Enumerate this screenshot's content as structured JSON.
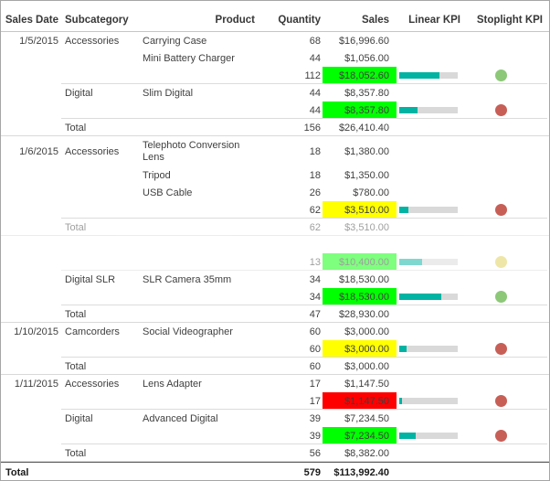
{
  "report": {
    "columns": [
      {
        "label": "Sales Date"
      },
      {
        "label": "Subcategory"
      },
      {
        "label": "Product"
      },
      {
        "label": "Quantity"
      },
      {
        "label": "Sales"
      },
      {
        "label": "Linear KPI"
      },
      {
        "label": "Stoplight KPI"
      }
    ],
    "rows": [
      {
        "type": "item",
        "date": "1/5/2015",
        "subcategory": "Accessories",
        "product": "Carrying Case",
        "quantity": "68",
        "sales": "$16,996.60"
      },
      {
        "type": "item",
        "product": "Mini Battery Charger",
        "quantity": "44",
        "sales": "$1,056.00"
      },
      {
        "type": "subtotal",
        "quantity": "112",
        "sales": "$18,052.60",
        "sales_bg": "green",
        "kpi_pct": 68,
        "dot": "green"
      },
      {
        "type": "item",
        "subcategory": "Digital",
        "product": "Slim Digital",
        "quantity": "44",
        "sales": "$8,357.80"
      },
      {
        "type": "subtotal",
        "quantity": "44",
        "sales": "$8,357.80",
        "sales_bg": "green",
        "kpi_pct": 32,
        "dot": "red"
      },
      {
        "type": "group-total",
        "label": "Total",
        "quantity": "156",
        "sales": "$26,410.40"
      },
      {
        "type": "item",
        "date": "1/6/2015",
        "subcategory": "Accessories",
        "product": "Telephoto Conversion Lens",
        "quantity": "18",
        "sales": "$1,380.00",
        "tall": true
      },
      {
        "type": "item",
        "product": "Tripod",
        "quantity": "18",
        "sales": "$1,350.00"
      },
      {
        "type": "item",
        "product": "USB Cable",
        "quantity": "26",
        "sales": "$780.00"
      },
      {
        "type": "subtotal",
        "quantity": "62",
        "sales": "$3,510.00",
        "sales_bg": "yellow",
        "kpi_pct": 16,
        "dot": "red"
      },
      {
        "type": "group-total",
        "label": "Total",
        "quantity": "62",
        "sales": "$3,510.00",
        "faded": true
      },
      {
        "type": "item",
        "blank": true,
        "faded": true
      },
      {
        "type": "subtotal",
        "quantity": "13",
        "sales": "$10,400.00",
        "sales_bg": "green",
        "kpi_pct": 39,
        "dot": "yellow",
        "faded": true
      },
      {
        "type": "item",
        "subcategory": "Digital SLR",
        "product": "SLR Camera 35mm",
        "quantity": "34",
        "sales": "$18,530.00"
      },
      {
        "type": "subtotal",
        "quantity": "34",
        "sales": "$18,530.00",
        "sales_bg": "green",
        "kpi_pct": 72,
        "dot": "green"
      },
      {
        "type": "group-total",
        "label": "Total",
        "quantity": "47",
        "sales": "$28,930.00"
      },
      {
        "type": "item",
        "date": "1/10/2015",
        "subcategory": "Camcorders",
        "product": "Social Videographer",
        "quantity": "60",
        "sales": "$3,000.00"
      },
      {
        "type": "subtotal",
        "quantity": "60",
        "sales": "$3,000.00",
        "sales_bg": "yellow",
        "kpi_pct": 12,
        "dot": "red"
      },
      {
        "type": "group-total",
        "label": "Total",
        "quantity": "60",
        "sales": "$3,000.00"
      },
      {
        "type": "item",
        "date": "1/11/2015",
        "subcategory": "Accessories",
        "product": "Lens Adapter",
        "quantity": "17",
        "sales": "$1,147.50"
      },
      {
        "type": "subtotal",
        "quantity": "17",
        "sales": "$1,147.50",
        "sales_bg": "red",
        "kpi_pct": 5,
        "dot": "red"
      },
      {
        "type": "item",
        "subcategory": "Digital",
        "product": "Advanced Digital",
        "quantity": "39",
        "sales": "$7,234.50"
      },
      {
        "type": "subtotal",
        "quantity": "39",
        "sales": "$7,234.50",
        "sales_bg": "green",
        "kpi_pct": 28,
        "dot": "red"
      },
      {
        "type": "group-total",
        "label": "Total",
        "quantity": "56",
        "sales": "$8,382.00"
      },
      {
        "type": "grand-total",
        "label": "Total",
        "quantity": "579",
        "sales": "$113,992.40"
      }
    ],
    "colors": {
      "cell_green": "#00ff00",
      "cell_yellow": "#ffff00",
      "cell_red": "#ff0000",
      "kpi_bar": "#00b3a2",
      "kpi_track": "#d9d9d9",
      "dot_green": "#8cc878",
      "dot_red": "#c75f57",
      "dot_yellow": "#dfcf52"
    }
  }
}
